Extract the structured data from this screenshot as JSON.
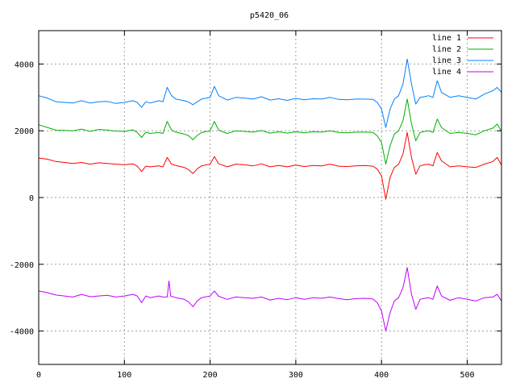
{
  "chart_data": {
    "type": "line",
    "title": "p5420_06",
    "xlabel": "",
    "ylabel": "",
    "xlim": [
      0,
      540
    ],
    "ylim": [
      -5000,
      5000
    ],
    "xticks": [
      0,
      100,
      200,
      300,
      400,
      500
    ],
    "yticks": [
      -4000,
      -2000,
      0,
      2000,
      4000
    ],
    "grid": true,
    "legend_position": "top-right",
    "series": [
      {
        "name": "line 1",
        "color": "#ff0000",
        "points": [
          [
            0,
            1180
          ],
          [
            10,
            1150
          ],
          [
            20,
            1080
          ],
          [
            30,
            1050
          ],
          [
            40,
            1020
          ],
          [
            50,
            1050
          ],
          [
            60,
            1000
          ],
          [
            70,
            1040
          ],
          [
            80,
            1020
          ],
          [
            90,
            1000
          ],
          [
            100,
            980
          ],
          [
            110,
            1010
          ],
          [
            115,
            940
          ],
          [
            120,
            780
          ],
          [
            125,
            940
          ],
          [
            130,
            920
          ],
          [
            140,
            950
          ],
          [
            145,
            920
          ],
          [
            150,
            1200
          ],
          [
            155,
            1000
          ],
          [
            160,
            960
          ],
          [
            170,
            900
          ],
          [
            175,
            830
          ],
          [
            180,
            720
          ],
          [
            185,
            860
          ],
          [
            190,
            950
          ],
          [
            200,
            1000
          ],
          [
            205,
            1230
          ],
          [
            210,
            1010
          ],
          [
            220,
            920
          ],
          [
            230,
            1000
          ],
          [
            240,
            980
          ],
          [
            250,
            950
          ],
          [
            260,
            1010
          ],
          [
            270,
            920
          ],
          [
            280,
            960
          ],
          [
            290,
            920
          ],
          [
            300,
            970
          ],
          [
            310,
            930
          ],
          [
            320,
            960
          ],
          [
            330,
            950
          ],
          [
            340,
            1000
          ],
          [
            350,
            940
          ],
          [
            360,
            930
          ],
          [
            370,
            950
          ],
          [
            380,
            960
          ],
          [
            390,
            940
          ],
          [
            395,
            850
          ],
          [
            400,
            650
          ],
          [
            405,
            -50
          ],
          [
            410,
            600
          ],
          [
            415,
            900
          ],
          [
            420,
            1000
          ],
          [
            425,
            1300
          ],
          [
            430,
            1950
          ],
          [
            435,
            1200
          ],
          [
            440,
            700
          ],
          [
            445,
            950
          ],
          [
            450,
            980
          ],
          [
            455,
            1000
          ],
          [
            460,
            950
          ],
          [
            465,
            1350
          ],
          [
            470,
            1100
          ],
          [
            480,
            920
          ],
          [
            490,
            950
          ],
          [
            500,
            920
          ],
          [
            510,
            900
          ],
          [
            520,
            1000
          ],
          [
            530,
            1080
          ],
          [
            535,
            1200
          ],
          [
            540,
            970
          ]
        ]
      },
      {
        "name": "line 2",
        "color": "#00b000",
        "points": [
          [
            0,
            2180
          ],
          [
            10,
            2100
          ],
          [
            20,
            2020
          ],
          [
            30,
            2010
          ],
          [
            40,
            2000
          ],
          [
            50,
            2050
          ],
          [
            60,
            1980
          ],
          [
            70,
            2040
          ],
          [
            80,
            2020
          ],
          [
            90,
            1990
          ],
          [
            100,
            1980
          ],
          [
            110,
            2030
          ],
          [
            115,
            1950
          ],
          [
            120,
            1800
          ],
          [
            125,
            1960
          ],
          [
            130,
            1920
          ],
          [
            140,
            1950
          ],
          [
            145,
            1920
          ],
          [
            150,
            2280
          ],
          [
            155,
            2020
          ],
          [
            160,
            1960
          ],
          [
            170,
            1900
          ],
          [
            175,
            1850
          ],
          [
            180,
            1730
          ],
          [
            185,
            1860
          ],
          [
            190,
            1950
          ],
          [
            200,
            2000
          ],
          [
            205,
            2280
          ],
          [
            210,
            2020
          ],
          [
            220,
            1920
          ],
          [
            230,
            2000
          ],
          [
            240,
            1980
          ],
          [
            250,
            1960
          ],
          [
            260,
            2010
          ],
          [
            270,
            1930
          ],
          [
            280,
            1970
          ],
          [
            290,
            1930
          ],
          [
            300,
            1970
          ],
          [
            310,
            1940
          ],
          [
            320,
            1970
          ],
          [
            330,
            1960
          ],
          [
            340,
            2000
          ],
          [
            350,
            1950
          ],
          [
            360,
            1940
          ],
          [
            370,
            1960
          ],
          [
            380,
            1960
          ],
          [
            390,
            1950
          ],
          [
            395,
            1850
          ],
          [
            400,
            1650
          ],
          [
            405,
            1000
          ],
          [
            410,
            1550
          ],
          [
            415,
            1900
          ],
          [
            420,
            2000
          ],
          [
            425,
            2300
          ],
          [
            430,
            2950
          ],
          [
            435,
            2200
          ],
          [
            440,
            1700
          ],
          [
            445,
            1950
          ],
          [
            450,
            1980
          ],
          [
            455,
            2000
          ],
          [
            460,
            1950
          ],
          [
            465,
            2350
          ],
          [
            470,
            2100
          ],
          [
            480,
            1920
          ],
          [
            490,
            1950
          ],
          [
            500,
            1920
          ],
          [
            510,
            1880
          ],
          [
            520,
            2000
          ],
          [
            530,
            2080
          ],
          [
            535,
            2200
          ],
          [
            540,
            1980
          ]
        ]
      },
      {
        "name": "line 3",
        "color": "#0080ff",
        "points": [
          [
            0,
            3050
          ],
          [
            10,
            2980
          ],
          [
            20,
            2870
          ],
          [
            30,
            2850
          ],
          [
            40,
            2830
          ],
          [
            50,
            2900
          ],
          [
            60,
            2830
          ],
          [
            70,
            2870
          ],
          [
            80,
            2880
          ],
          [
            90,
            2820
          ],
          [
            100,
            2850
          ],
          [
            110,
            2900
          ],
          [
            115,
            2850
          ],
          [
            120,
            2700
          ],
          [
            125,
            2870
          ],
          [
            130,
            2830
          ],
          [
            140,
            2900
          ],
          [
            145,
            2870
          ],
          [
            150,
            3300
          ],
          [
            155,
            3050
          ],
          [
            160,
            2950
          ],
          [
            170,
            2900
          ],
          [
            175,
            2860
          ],
          [
            180,
            2780
          ],
          [
            185,
            2870
          ],
          [
            190,
            2950
          ],
          [
            200,
            3000
          ],
          [
            205,
            3330
          ],
          [
            210,
            3050
          ],
          [
            220,
            2920
          ],
          [
            230,
            3000
          ],
          [
            240,
            2980
          ],
          [
            250,
            2950
          ],
          [
            260,
            3020
          ],
          [
            270,
            2920
          ],
          [
            280,
            2960
          ],
          [
            290,
            2910
          ],
          [
            300,
            2970
          ],
          [
            310,
            2930
          ],
          [
            320,
            2960
          ],
          [
            330,
            2950
          ],
          [
            340,
            3000
          ],
          [
            350,
            2940
          ],
          [
            360,
            2930
          ],
          [
            370,
            2950
          ],
          [
            380,
            2950
          ],
          [
            390,
            2940
          ],
          [
            395,
            2850
          ],
          [
            400,
            2650
          ],
          [
            405,
            2100
          ],
          [
            410,
            2650
          ],
          [
            415,
            2950
          ],
          [
            420,
            3050
          ],
          [
            425,
            3400
          ],
          [
            430,
            4150
          ],
          [
            435,
            3400
          ],
          [
            440,
            2800
          ],
          [
            445,
            3000
          ],
          [
            450,
            3020
          ],
          [
            455,
            3050
          ],
          [
            460,
            3000
          ],
          [
            465,
            3500
          ],
          [
            470,
            3150
          ],
          [
            480,
            3000
          ],
          [
            490,
            3050
          ],
          [
            500,
            3000
          ],
          [
            510,
            2950
          ],
          [
            520,
            3100
          ],
          [
            530,
            3200
          ],
          [
            535,
            3300
          ],
          [
            540,
            3150
          ]
        ]
      },
      {
        "name": "line 4",
        "color": "#c000ff",
        "points": [
          [
            0,
            -2800
          ],
          [
            10,
            -2850
          ],
          [
            20,
            -2920
          ],
          [
            30,
            -2950
          ],
          [
            40,
            -2980
          ],
          [
            50,
            -2900
          ],
          [
            60,
            -2970
          ],
          [
            70,
            -2950
          ],
          [
            80,
            -2930
          ],
          [
            90,
            -2980
          ],
          [
            100,
            -2950
          ],
          [
            110,
            -2900
          ],
          [
            115,
            -2950
          ],
          [
            120,
            -3150
          ],
          [
            125,
            -2950
          ],
          [
            130,
            -3000
          ],
          [
            140,
            -2950
          ],
          [
            145,
            -2980
          ],
          [
            150,
            -2980
          ],
          [
            152,
            -2500
          ],
          [
            154,
            -2950
          ],
          [
            160,
            -3000
          ],
          [
            170,
            -3050
          ],
          [
            175,
            -3130
          ],
          [
            180,
            -3270
          ],
          [
            185,
            -3100
          ],
          [
            190,
            -3000
          ],
          [
            200,
            -2950
          ],
          [
            205,
            -2800
          ],
          [
            210,
            -2960
          ],
          [
            220,
            -3050
          ],
          [
            230,
            -2980
          ],
          [
            240,
            -3000
          ],
          [
            250,
            -3020
          ],
          [
            260,
            -2980
          ],
          [
            270,
            -3070
          ],
          [
            280,
            -3020
          ],
          [
            290,
            -3060
          ],
          [
            300,
            -3000
          ],
          [
            310,
            -3050
          ],
          [
            320,
            -3000
          ],
          [
            330,
            -3020
          ],
          [
            340,
            -2980
          ],
          [
            350,
            -3030
          ],
          [
            360,
            -3060
          ],
          [
            370,
            -3030
          ],
          [
            380,
            -3020
          ],
          [
            390,
            -3040
          ],
          [
            395,
            -3150
          ],
          [
            400,
            -3400
          ],
          [
            405,
            -4000
          ],
          [
            410,
            -3450
          ],
          [
            415,
            -3100
          ],
          [
            420,
            -3000
          ],
          [
            425,
            -2700
          ],
          [
            430,
            -2100
          ],
          [
            435,
            -2900
          ],
          [
            440,
            -3350
          ],
          [
            445,
            -3050
          ],
          [
            450,
            -3020
          ],
          [
            455,
            -3000
          ],
          [
            460,
            -3050
          ],
          [
            465,
            -2650
          ],
          [
            470,
            -2950
          ],
          [
            480,
            -3080
          ],
          [
            490,
            -3000
          ],
          [
            500,
            -3050
          ],
          [
            510,
            -3100
          ],
          [
            520,
            -3000
          ],
          [
            530,
            -2980
          ],
          [
            535,
            -2900
          ],
          [
            540,
            -3100
          ]
        ]
      }
    ]
  }
}
